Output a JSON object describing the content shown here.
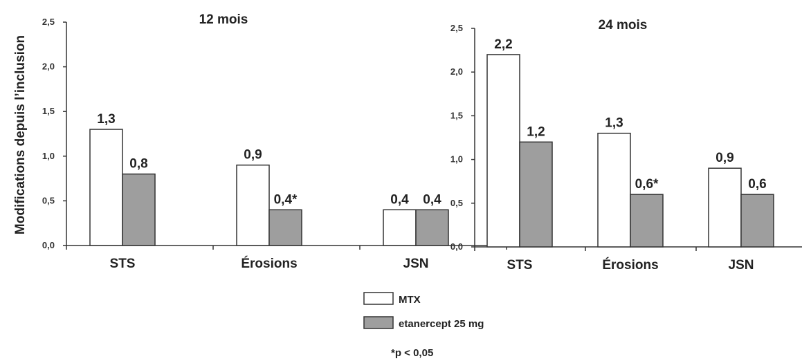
{
  "colors": {
    "mtx": "#ffffff",
    "etanercept": "#9e9e9e",
    "stroke": "#333333"
  },
  "ylabel": "Modifications depuis l’inclusion",
  "legend": {
    "mtx": "MTX",
    "etanercept": "etanercept 25 mg"
  },
  "footnote": "*p < 0,05",
  "chart_data": [
    {
      "type": "bar",
      "title": "12 mois",
      "categories": [
        "STS",
        "Érosions",
        "JSN"
      ],
      "ylabel": "Modifications depuis l’inclusion",
      "ylim": [
        0,
        2.5
      ],
      "yticks": [
        "0,0",
        "0,5",
        "1,0",
        "1,5",
        "2,0",
        "2,5"
      ],
      "series": [
        {
          "name": "MTX",
          "values": [
            1.3,
            0.9,
            0.4
          ],
          "labels": [
            "1,3",
            "0,9",
            "0,4"
          ]
        },
        {
          "name": "etanercept 25 mg",
          "values": [
            0.8,
            0.4,
            0.4
          ],
          "labels": [
            "0,8",
            "0,4*",
            "0,4"
          ]
        }
      ]
    },
    {
      "type": "bar",
      "title": "24 mois",
      "categories": [
        "STS",
        "Érosions",
        "JSN"
      ],
      "ylim": [
        0,
        2.5
      ],
      "yticks": [
        "0,0",
        "0,5",
        "1,0",
        "1,5",
        "2,0",
        "2,5"
      ],
      "series": [
        {
          "name": "MTX",
          "values": [
            2.2,
            1.3,
            0.9
          ],
          "labels": [
            "2,2",
            "1,3",
            "0,9"
          ]
        },
        {
          "name": "etanercept 25 mg",
          "values": [
            1.2,
            0.6,
            0.6
          ],
          "labels": [
            "1,2",
            "0,6*",
            "0,6"
          ]
        }
      ]
    }
  ]
}
